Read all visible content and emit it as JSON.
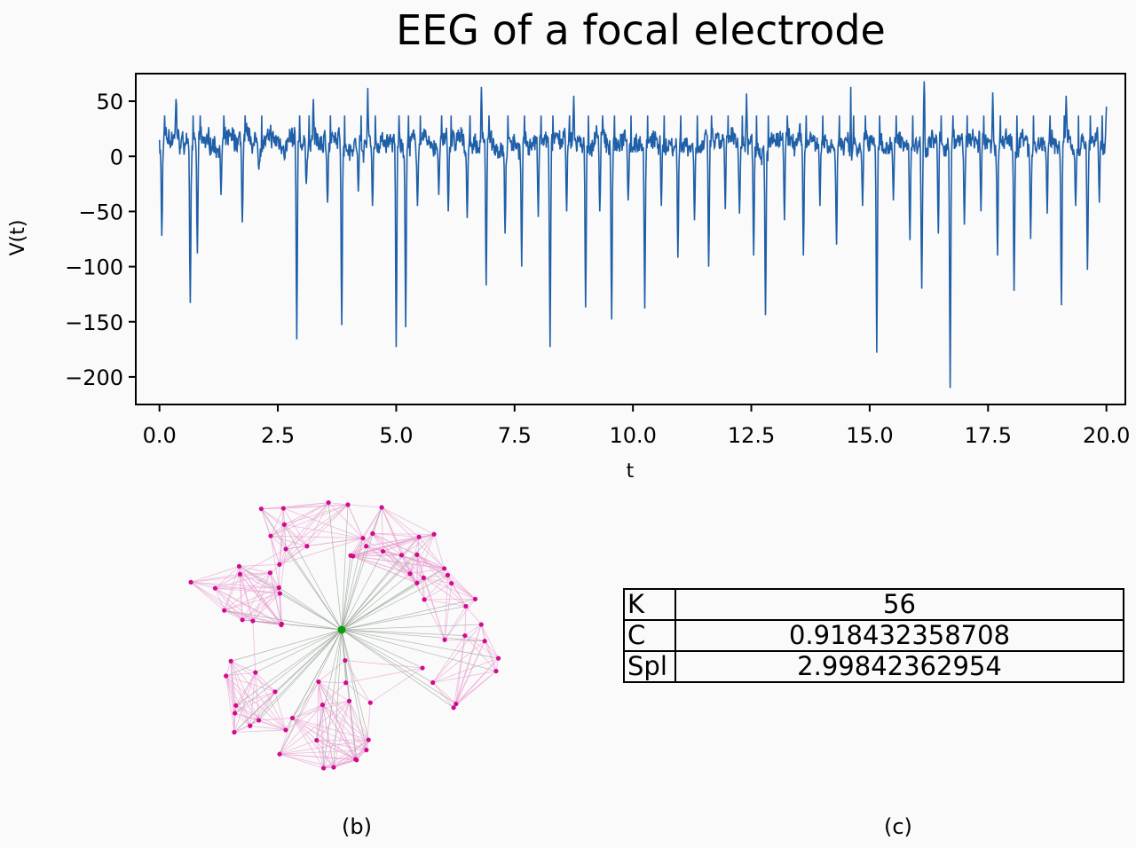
{
  "chart_data": [
    {
      "type": "line",
      "title": "EEG of a focal electrode",
      "xlabel": "t",
      "ylabel": "V(t)",
      "xlim": [
        -0.5,
        20.4
      ],
      "ylim": [
        -225,
        75
      ],
      "x_ticks": [
        "0.0",
        "2.5",
        "5.0",
        "7.5",
        "10.0",
        "12.5",
        "15.0",
        "17.5",
        "20.0"
      ],
      "y_ticks": [
        "50",
        "0",
        "−50",
        "−100",
        "−150",
        "−200"
      ],
      "line_color": "#1f5fa8",
      "grid": false,
      "baseline": 12,
      "noise_amplitude": 18,
      "x_range": [
        0,
        20
      ],
      "spikes": [
        {
          "x": 0.05,
          "y": -72
        },
        {
          "x": 0.3,
          "y": 20
        },
        {
          "x": 0.65,
          "y": -133
        },
        {
          "x": 0.8,
          "y": -88
        },
        {
          "x": 1.3,
          "y": -35
        },
        {
          "x": 1.75,
          "y": -60
        },
        {
          "x": 2.1,
          "y": -12
        },
        {
          "x": 2.9,
          "y": -166
        },
        {
          "x": 3.1,
          "y": -25
        },
        {
          "x": 3.55,
          "y": -42
        },
        {
          "x": 3.85,
          "y": -153
        },
        {
          "x": 4.2,
          "y": -32
        },
        {
          "x": 4.5,
          "y": -45
        },
        {
          "x": 5.0,
          "y": -173
        },
        {
          "x": 5.2,
          "y": -155
        },
        {
          "x": 5.45,
          "y": -45
        },
        {
          "x": 5.9,
          "y": -35
        },
        {
          "x": 6.1,
          "y": -50
        },
        {
          "x": 6.5,
          "y": -56
        },
        {
          "x": 6.9,
          "y": -117
        },
        {
          "x": 7.3,
          "y": -70
        },
        {
          "x": 7.65,
          "y": -100
        },
        {
          "x": 8.0,
          "y": -55
        },
        {
          "x": 8.25,
          "y": -173
        },
        {
          "x": 8.6,
          "y": -50
        },
        {
          "x": 9.0,
          "y": -137
        },
        {
          "x": 9.3,
          "y": -50
        },
        {
          "x": 9.55,
          "y": -148
        },
        {
          "x": 9.9,
          "y": -40
        },
        {
          "x": 10.25,
          "y": -138
        },
        {
          "x": 10.6,
          "y": -45
        },
        {
          "x": 10.95,
          "y": -92
        },
        {
          "x": 11.3,
          "y": -58
        },
        {
          "x": 11.6,
          "y": -100
        },
        {
          "x": 11.95,
          "y": -48
        },
        {
          "x": 12.25,
          "y": -52
        },
        {
          "x": 12.55,
          "y": -90
        },
        {
          "x": 12.8,
          "y": -144
        },
        {
          "x": 13.2,
          "y": -58
        },
        {
          "x": 13.6,
          "y": -90
        },
        {
          "x": 13.95,
          "y": -45
        },
        {
          "x": 14.3,
          "y": -80
        },
        {
          "x": 14.6,
          "y": -66
        },
        {
          "x": 14.85,
          "y": -45
        },
        {
          "x": 15.15,
          "y": -178
        },
        {
          "x": 15.5,
          "y": -40
        },
        {
          "x": 15.85,
          "y": -76
        },
        {
          "x": 16.1,
          "y": -120
        },
        {
          "x": 16.45,
          "y": -70
        },
        {
          "x": 16.7,
          "y": -210
        },
        {
          "x": 17.0,
          "y": -62
        },
        {
          "x": 17.35,
          "y": -50
        },
        {
          "x": 17.7,
          "y": -90
        },
        {
          "x": 18.05,
          "y": -122
        },
        {
          "x": 18.4,
          "y": -75
        },
        {
          "x": 18.75,
          "y": -52
        },
        {
          "x": 19.05,
          "y": -135
        },
        {
          "x": 19.35,
          "y": -45
        },
        {
          "x": 19.6,
          "y": -103
        },
        {
          "x": 19.85,
          "y": -42
        }
      ],
      "peaks": [
        {
          "x": 0.35,
          "y": 52
        },
        {
          "x": 3.25,
          "y": 52
        },
        {
          "x": 4.4,
          "y": 62
        },
        {
          "x": 6.8,
          "y": 63
        },
        {
          "x": 8.75,
          "y": 55
        },
        {
          "x": 12.4,
          "y": 57
        },
        {
          "x": 14.6,
          "y": 63
        },
        {
          "x": 16.15,
          "y": 68
        },
        {
          "x": 17.6,
          "y": 58
        },
        {
          "x": 19.15,
          "y": 55
        },
        {
          "x": 20.0,
          "y": 45
        }
      ]
    }
  ],
  "network": {
    "node_color": "#d10a8f",
    "hub_color": "#0a9a0a",
    "edge_color": "#e8a0d2",
    "hub_edge_color": "#9aa89a",
    "node_count": 76,
    "label": "(b)"
  },
  "metrics": {
    "rows": [
      {
        "key": "K",
        "value": "56"
      },
      {
        "key": "C",
        "value": "0.918432358708"
      },
      {
        "key": "Spl",
        "value": "2.99842362954"
      }
    ],
    "label": "(c)"
  }
}
